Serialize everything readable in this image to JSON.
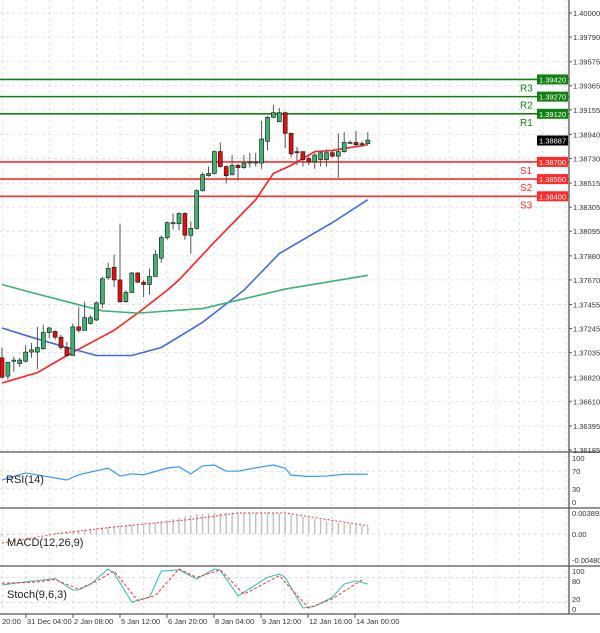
{
  "chart_data": [
    {
      "type": "candlestick",
      "panel": "price",
      "last_price": "1.38887",
      "y_ticks": [
        "1.40000",
        "1.39790",
        "1.39575",
        "1.39365",
        "1.39155",
        "1.38940",
        "1.38730",
        "1.38515",
        "1.38305",
        "1.38095",
        "1.37880",
        "1.37670",
        "1.37455",
        "1.37245",
        "1.37035",
        "1.36820",
        "1.36610",
        "1.36395",
        "1.36185"
      ],
      "ylim": [
        1.36185,
        1.4
      ],
      "grid": true,
      "x_tick_labels": [
        "20:00",
        "31 Dec 04:00",
        "2 Jan 08:00",
        "5 Jan 12:00",
        "6 Jan 20:00",
        "8 Jan 04:00",
        "9 Jan 12:00",
        "12 Jan 16:00",
        "14 Jan 00:00"
      ],
      "ohlc": [
        [
          1.3699,
          1.3708,
          1.3681,
          1.3682
        ],
        [
          1.3683,
          1.3695,
          1.368,
          1.3695
        ],
        [
          1.3696,
          1.37,
          1.3687,
          1.3697
        ],
        [
          1.3694,
          1.3699,
          1.3691,
          1.3697
        ],
        [
          1.3696,
          1.371,
          1.3695,
          1.3704
        ],
        [
          1.3704,
          1.3712,
          1.3699,
          1.3706
        ],
        [
          1.3704,
          1.3726,
          1.3689,
          1.3708
        ],
        [
          1.3707,
          1.3728,
          1.3706,
          1.3721
        ],
        [
          1.3721,
          1.3726,
          1.3716,
          1.3725
        ],
        [
          1.3722,
          1.3723,
          1.3715,
          1.3717
        ],
        [
          1.3717,
          1.3719,
          1.3706,
          1.3708
        ],
        [
          1.3708,
          1.3713,
          1.37,
          1.3701
        ],
        [
          1.3701,
          1.3729,
          1.3701,
          1.3726
        ],
        [
          1.3726,
          1.3743,
          1.3721,
          1.3723
        ],
        [
          1.3723,
          1.3748,
          1.3723,
          1.3734
        ],
        [
          1.3729,
          1.3736,
          1.3728,
          1.3734
        ],
        [
          1.3732,
          1.3748,
          1.3731,
          1.3747
        ],
        [
          1.3746,
          1.377,
          1.3742,
          1.3768
        ],
        [
          1.3769,
          1.3782,
          1.3767,
          1.3777
        ],
        [
          1.3778,
          1.3789,
          1.3761,
          1.3767
        ],
        [
          1.3767,
          1.3816,
          1.3747,
          1.3748
        ],
        [
          1.3748,
          1.3758,
          1.3747,
          1.3756
        ],
        [
          1.3756,
          1.3774,
          1.3756,
          1.3773
        ],
        [
          1.3773,
          1.3774,
          1.3764,
          1.3765
        ],
        [
          1.3765,
          1.3767,
          1.3752,
          1.3763
        ],
        [
          1.3763,
          1.3777,
          1.3754,
          1.377
        ],
        [
          1.377,
          1.3793,
          1.377,
          1.3789
        ],
        [
          1.3786,
          1.3806,
          1.3782,
          1.3804
        ],
        [
          1.3804,
          1.3818,
          1.3802,
          1.3817
        ],
        [
          1.3816,
          1.3825,
          1.3811,
          1.3817
        ],
        [
          1.3816,
          1.3826,
          1.381,
          1.3825
        ],
        [
          1.3825,
          1.3826,
          1.3802,
          1.3806
        ],
        [
          1.3806,
          1.3818,
          1.379,
          1.3812
        ],
        [
          1.3812,
          1.3846,
          1.3811,
          1.3845
        ],
        [
          1.3845,
          1.3861,
          1.3844,
          1.3859
        ],
        [
          1.3858,
          1.3866,
          1.3857,
          1.386
        ],
        [
          1.386,
          1.388,
          1.3859,
          1.3879
        ],
        [
          1.3879,
          1.3887,
          1.3865,
          1.3866
        ],
        [
          1.3866,
          1.3867,
          1.3851,
          1.3858
        ],
        [
          1.3859,
          1.3876,
          1.3858,
          1.3867
        ],
        [
          1.3867,
          1.3868,
          1.3854,
          1.3865
        ],
        [
          1.3865,
          1.3876,
          1.3864,
          1.3869
        ],
        [
          1.3869,
          1.3878,
          1.3865,
          1.387
        ],
        [
          1.3869,
          1.3878,
          1.3866,
          1.387
        ],
        [
          1.3869,
          1.3906,
          1.3864,
          1.389
        ],
        [
          1.3888,
          1.391,
          1.388,
          1.3909
        ],
        [
          1.3909,
          1.392,
          1.3908,
          1.3913
        ],
        [
          1.3905,
          1.3917,
          1.3905,
          1.3913
        ],
        [
          1.3913,
          1.3914,
          1.3882,
          1.3895
        ],
        [
          1.3895,
          1.3895,
          1.3874,
          1.3877
        ],
        [
          1.3879,
          1.3883,
          1.3867,
          1.3878
        ],
        [
          1.3879,
          1.3879,
          1.3866,
          1.3872
        ],
        [
          1.3873,
          1.3876,
          1.3867,
          1.387
        ],
        [
          1.387,
          1.3878,
          1.3864,
          1.3876
        ],
        [
          1.3872,
          1.388,
          1.3866,
          1.3878
        ],
        [
          1.3872,
          1.3881,
          1.3866,
          1.3878
        ],
        [
          1.3878,
          1.388,
          1.3874,
          1.3875
        ],
        [
          1.3875,
          1.3895,
          1.3856,
          1.3879
        ],
        [
          1.3879,
          1.3896,
          1.3878,
          1.3887
        ],
        [
          1.3887,
          1.3889,
          1.3886,
          1.3887
        ],
        [
          1.3887,
          1.3897,
          1.3884,
          1.3885
        ],
        [
          1.3886,
          1.3888,
          1.3883,
          1.3886
        ],
        [
          1.3886,
          1.3896,
          1.3885,
          1.3889
        ]
      ],
      "moving_averages": [
        {
          "color": "#ff2020",
          "points": [
            [
              1,
              1.3677
            ],
            [
              7,
              1.3686
            ],
            [
              12,
              1.3701
            ],
            [
              16,
              1.3712
            ],
            [
              20,
              1.3723
            ],
            [
              24,
              1.3738
            ],
            [
              29,
              1.3758
            ],
            [
              31,
              1.3767
            ],
            [
              37,
              1.38
            ],
            [
              44,
              1.3837
            ],
            [
              47,
              1.386
            ],
            [
              50,
              1.3867
            ],
            [
              54,
              1.3879
            ],
            [
              57,
              1.388
            ],
            [
              63,
              1.3885
            ]
          ]
        },
        {
          "color": "#4169e1",
          "points": [
            [
              1,
              1.3725
            ],
            [
              6,
              1.3717
            ],
            [
              12,
              1.3708
            ],
            [
              17,
              1.3701
            ],
            [
              23,
              1.3701
            ],
            [
              28,
              1.3708
            ],
            [
              35,
              1.373
            ],
            [
              42,
              1.3758
            ],
            [
              48,
              1.379
            ],
            [
              57,
              1.3817
            ],
            [
              63,
              1.3837
            ]
          ]
        },
        {
          "color": "#3cb371",
          "points": [
            [
              1,
              1.3763
            ],
            [
              6,
              1.3756
            ],
            [
              12,
              1.3748
            ],
            [
              18,
              1.374
            ],
            [
              24,
              1.3738
            ],
            [
              35,
              1.3742
            ],
            [
              49,
              1.3759
            ],
            [
              63,
              1.3771
            ]
          ]
        }
      ],
      "levels": [
        {
          "label": "R3",
          "price": "1.39420",
          "value": 1.3942,
          "color": "#108010"
        },
        {
          "label": "R2",
          "price": "1.39270",
          "value": 1.3927,
          "color": "#108010"
        },
        {
          "label": "R1",
          "price": "1.39120",
          "value": 1.3912,
          "color": "#108010"
        },
        {
          "label": "S1",
          "price": "1.38700",
          "value": 1.387,
          "color": "#ff2a2a"
        },
        {
          "label": "S2",
          "price": "1.38550",
          "value": 1.3855,
          "color": "#ff2a2a"
        },
        {
          "label": "S3",
          "price": "1.38400",
          "value": 1.384,
          "color": "#ff2a2a"
        }
      ],
      "colors": {
        "bull": "#3cb371",
        "bear": "#e01010"
      }
    },
    {
      "type": "line",
      "panel": "rsi",
      "title": "RSI(14)",
      "y_ticks": [
        "100",
        "70",
        "30",
        "0"
      ],
      "ylim": [
        0,
        100
      ],
      "color": "#3399ff",
      "points": [
        [
          1,
          50
        ],
        [
          5,
          66
        ],
        [
          12,
          50
        ],
        [
          14,
          62
        ],
        [
          19,
          77
        ],
        [
          21,
          59
        ],
        [
          23,
          64
        ],
        [
          25,
          62
        ],
        [
          29,
          77
        ],
        [
          31,
          80
        ],
        [
          33,
          64
        ],
        [
          35,
          82
        ],
        [
          37,
          84
        ],
        [
          39,
          70
        ],
        [
          41,
          70
        ],
        [
          45,
          80
        ],
        [
          47,
          84
        ],
        [
          49,
          77
        ],
        [
          50,
          61
        ],
        [
          53,
          58
        ],
        [
          56,
          59
        ],
        [
          59,
          63
        ],
        [
          63,
          63
        ]
      ]
    },
    {
      "type": "bar",
      "panel": "macd",
      "title": "MACD(12,26,9)",
      "y_ticks": [
        "0.003892",
        "0.00",
        "-0.004801"
      ],
      "ylim": [
        -0.004801,
        0.003892
      ],
      "histogram": [
        [
          1,
          -0.0003
        ],
        [
          10,
          0.0002
        ],
        [
          18,
          0.0013
        ],
        [
          27,
          0.0021
        ],
        [
          34,
          0.0037
        ],
        [
          40,
          0.004
        ],
        [
          46,
          0.004
        ],
        [
          50,
          0.0036
        ],
        [
          56,
          0.0024
        ],
        [
          63,
          0.0014
        ]
      ],
      "signal": [
        [
          1,
          -0.0017
        ],
        [
          10,
          0.0
        ],
        [
          20,
          0.0013
        ],
        [
          33,
          0.0027
        ],
        [
          41,
          0.0039
        ],
        [
          49,
          0.0039
        ],
        [
          56,
          0.0027
        ],
        [
          63,
          0.0015
        ]
      ]
    },
    {
      "type": "line",
      "panel": "stoch",
      "title": "Stoch(9,6,3)",
      "y_ticks": [
        "100",
        "80",
        "20",
        "0"
      ],
      "ylim": [
        0,
        100
      ],
      "main": [
        [
          1,
          62
        ],
        [
          6,
          71
        ],
        [
          10,
          77
        ],
        [
          13,
          50
        ],
        [
          14,
          50
        ],
        [
          16,
          64
        ],
        [
          19,
          100
        ],
        [
          20,
          90
        ],
        [
          23,
          21
        ],
        [
          26,
          33
        ],
        [
          28,
          95
        ],
        [
          31,
          98
        ],
        [
          34,
          76
        ],
        [
          37,
          100
        ],
        [
          38,
          97
        ],
        [
          41,
          36
        ],
        [
          46,
          80
        ],
        [
          48,
          88
        ],
        [
          49,
          80
        ],
        [
          52,
          7
        ],
        [
          54,
          11
        ],
        [
          57,
          33
        ],
        [
          59,
          64
        ],
        [
          61,
          72
        ],
        [
          63,
          64
        ]
      ],
      "signal": [
        [
          1,
          66
        ],
        [
          7,
          69
        ],
        [
          10,
          75
        ],
        [
          14,
          52
        ],
        [
          17,
          71
        ],
        [
          20,
          95
        ],
        [
          24,
          25
        ],
        [
          27,
          37
        ],
        [
          31,
          100
        ],
        [
          34,
          80
        ],
        [
          38,
          98
        ],
        [
          42,
          40
        ],
        [
          48,
          84
        ],
        [
          53,
          7
        ],
        [
          57,
          29
        ],
        [
          62,
          74
        ]
      ]
    }
  ]
}
